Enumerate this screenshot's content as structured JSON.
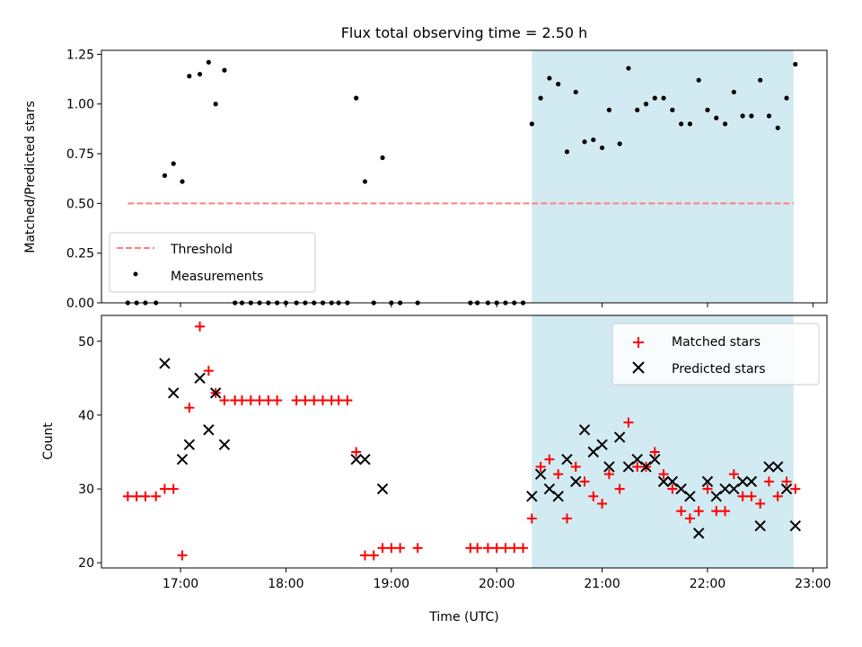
{
  "chart_data": [
    {
      "type": "scatter",
      "title": "Flux total observing time = 2.50 h",
      "xlabel": "",
      "ylabel": "Matched/Predicted stars",
      "xlim": [
        "16:15",
        "23:08"
      ],
      "ylim": [
        0,
        1.27
      ],
      "x_ticks": [
        "17:00",
        "18:00",
        "19:00",
        "20:00",
        "21:00",
        "22:00",
        "23:00"
      ],
      "y_ticks": [
        "0.00",
        "0.25",
        "0.50",
        "0.75",
        "1.00",
        "1.25"
      ],
      "shaded_interval": [
        "20:20",
        "22:49"
      ],
      "shade_color": "#add8e6",
      "legend_position": "lower-left",
      "series": [
        {
          "name": "Threshold",
          "style": "dashed-line",
          "color": "#ff7f7f",
          "points": [
            [
              "16:30",
              0.5
            ],
            [
              "22:49",
              0.5
            ]
          ]
        },
        {
          "name": "Measurements",
          "style": "dot",
          "color": "#000000",
          "points": [
            [
              "16:30",
              0
            ],
            [
              "16:35",
              0
            ],
            [
              "16:40",
              0
            ],
            [
              "16:46",
              0
            ],
            [
              "16:51",
              0.64
            ],
            [
              "16:56",
              0.7
            ],
            [
              "17:01",
              0.61
            ],
            [
              "17:05",
              1.14
            ],
            [
              "17:11",
              1.15
            ],
            [
              "17:16",
              1.21
            ],
            [
              "17:20",
              1.0
            ],
            [
              "17:25",
              1.17
            ],
            [
              "17:31",
              0
            ],
            [
              "17:35",
              0
            ],
            [
              "17:40",
              0
            ],
            [
              "17:45",
              0
            ],
            [
              "17:50",
              0
            ],
            [
              "17:55",
              0
            ],
            [
              "18:00",
              0
            ],
            [
              "18:06",
              0
            ],
            [
              "18:11",
              0
            ],
            [
              "18:16",
              0
            ],
            [
              "18:21",
              0
            ],
            [
              "18:26",
              0
            ],
            [
              "18:30",
              0
            ],
            [
              "18:35",
              0
            ],
            [
              "18:40",
              1.03
            ],
            [
              "18:45",
              0.61
            ],
            [
              "18:50",
              0
            ],
            [
              "18:55",
              0.73
            ],
            [
              "19:00",
              0
            ],
            [
              "19:05",
              0
            ],
            [
              "19:15",
              0
            ],
            [
              "19:45",
              0
            ],
            [
              "19:49",
              0
            ],
            [
              "19:55",
              0
            ],
            [
              "20:00",
              0
            ],
            [
              "20:05",
              0
            ],
            [
              "20:10",
              0
            ],
            [
              "20:15",
              0
            ],
            [
              "20:20",
              0.9
            ],
            [
              "20:25",
              1.03
            ],
            [
              "20:30",
              1.13
            ],
            [
              "20:35",
              1.1
            ],
            [
              "20:40",
              0.76
            ],
            [
              "20:45",
              1.06
            ],
            [
              "20:50",
              0.81
            ],
            [
              "20:55",
              0.82
            ],
            [
              "21:00",
              0.78
            ],
            [
              "21:04",
              0.97
            ],
            [
              "21:10",
              0.8
            ],
            [
              "21:15",
              1.18
            ],
            [
              "21:20",
              0.97
            ],
            [
              "21:25",
              1.0
            ],
            [
              "21:30",
              1.03
            ],
            [
              "21:35",
              1.03
            ],
            [
              "21:40",
              0.97
            ],
            [
              "21:45",
              0.9
            ],
            [
              "21:50",
              0.9
            ],
            [
              "21:55",
              1.12
            ],
            [
              "22:00",
              0.97
            ],
            [
              "22:05",
              0.93
            ],
            [
              "22:10",
              0.9
            ],
            [
              "22:15",
              1.06
            ],
            [
              "22:20",
              0.94
            ],
            [
              "22:25",
              0.94
            ],
            [
              "22:30",
              1.12
            ],
            [
              "22:35",
              0.94
            ],
            [
              "22:40",
              0.88
            ],
            [
              "22:45",
              1.03
            ],
            [
              "22:50",
              1.2
            ]
          ]
        }
      ]
    },
    {
      "type": "scatter",
      "title": "",
      "xlabel": "Time (UTC)",
      "ylabel": "Count",
      "xlim": [
        "16:15",
        "23:08"
      ],
      "ylim": [
        19.3,
        53.5
      ],
      "x_ticks": [
        "17:00",
        "18:00",
        "19:00",
        "20:00",
        "21:00",
        "22:00",
        "23:00"
      ],
      "y_ticks": [
        "20",
        "30",
        "40",
        "50"
      ],
      "shaded_interval": [
        "20:20",
        "22:49"
      ],
      "shade_color": "#add8e6",
      "legend_position": "upper-right",
      "series": [
        {
          "name": "Matched stars",
          "marker": "plus",
          "color": "#ff0000",
          "points": [
            [
              "16:30",
              29
            ],
            [
              "16:35",
              29
            ],
            [
              "16:40",
              29
            ],
            [
              "16:46",
              29
            ],
            [
              "16:51",
              30
            ],
            [
              "16:56",
              30
            ],
            [
              "17:01",
              21
            ],
            [
              "17:05",
              41
            ],
            [
              "17:11",
              52
            ],
            [
              "17:16",
              46
            ],
            [
              "17:20",
              43
            ],
            [
              "17:25",
              42
            ],
            [
              "17:31",
              42
            ],
            [
              "17:35",
              42
            ],
            [
              "17:40",
              42
            ],
            [
              "17:45",
              42
            ],
            [
              "17:50",
              42
            ],
            [
              "17:55",
              42
            ],
            [
              "18:06",
              42
            ],
            [
              "18:11",
              42
            ],
            [
              "18:16",
              42
            ],
            [
              "18:21",
              42
            ],
            [
              "18:26",
              42
            ],
            [
              "18:30",
              42
            ],
            [
              "18:35",
              42
            ],
            [
              "18:40",
              35
            ],
            [
              "18:45",
              21
            ],
            [
              "18:50",
              21
            ],
            [
              "18:55",
              22
            ],
            [
              "19:00",
              22
            ],
            [
              "19:05",
              22
            ],
            [
              "19:15",
              22
            ],
            [
              "19:45",
              22
            ],
            [
              "19:49",
              22
            ],
            [
              "19:55",
              22
            ],
            [
              "20:00",
              22
            ],
            [
              "20:05",
              22
            ],
            [
              "20:10",
              22
            ],
            [
              "20:15",
              22
            ],
            [
              "20:20",
              26
            ],
            [
              "20:25",
              33
            ],
            [
              "20:30",
              34
            ],
            [
              "20:35",
              32
            ],
            [
              "20:40",
              26
            ],
            [
              "20:45",
              33
            ],
            [
              "20:50",
              31
            ],
            [
              "20:55",
              29
            ],
            [
              "21:00",
              28
            ],
            [
              "21:04",
              32
            ],
            [
              "21:10",
              30
            ],
            [
              "21:15",
              39
            ],
            [
              "21:20",
              33
            ],
            [
              "21:25",
              33
            ],
            [
              "21:30",
              35
            ],
            [
              "21:35",
              32
            ],
            [
              "21:40",
              30
            ],
            [
              "21:45",
              27
            ],
            [
              "21:50",
              26
            ],
            [
              "21:55",
              27
            ],
            [
              "22:00",
              30
            ],
            [
              "22:05",
              27
            ],
            [
              "22:10",
              27
            ],
            [
              "22:15",
              32
            ],
            [
              "22:20",
              29
            ],
            [
              "22:25",
              29
            ],
            [
              "22:30",
              28
            ],
            [
              "22:35",
              31
            ],
            [
              "22:40",
              29
            ],
            [
              "22:45",
              31
            ],
            [
              "22:50",
              30
            ]
          ]
        },
        {
          "name": "Predicted stars",
          "marker": "x",
          "color": "#000000",
          "points": [
            [
              "16:51",
              47
            ],
            [
              "16:56",
              43
            ],
            [
              "17:01",
              34
            ],
            [
              "17:05",
              36
            ],
            [
              "17:11",
              45
            ],
            [
              "17:16",
              38
            ],
            [
              "17:20",
              43
            ],
            [
              "17:25",
              36
            ],
            [
              "18:40",
              34
            ],
            [
              "18:45",
              34
            ],
            [
              "18:55",
              30
            ],
            [
              "20:20",
              29
            ],
            [
              "20:25",
              32
            ],
            [
              "20:30",
              30
            ],
            [
              "20:35",
              29
            ],
            [
              "20:40",
              34
            ],
            [
              "20:45",
              31
            ],
            [
              "20:50",
              38
            ],
            [
              "20:55",
              35
            ],
            [
              "21:00",
              36
            ],
            [
              "21:04",
              33
            ],
            [
              "21:10",
              37
            ],
            [
              "21:15",
              33
            ],
            [
              "21:20",
              34
            ],
            [
              "21:25",
              33
            ],
            [
              "21:30",
              34
            ],
            [
              "21:35",
              31
            ],
            [
              "21:40",
              31
            ],
            [
              "21:45",
              30
            ],
            [
              "21:50",
              29
            ],
            [
              "21:55",
              24
            ],
            [
              "22:00",
              31
            ],
            [
              "22:05",
              29
            ],
            [
              "22:10",
              30
            ],
            [
              "22:15",
              30
            ],
            [
              "22:20",
              31
            ],
            [
              "22:25",
              31
            ],
            [
              "22:30",
              25
            ],
            [
              "22:35",
              33
            ],
            [
              "22:40",
              33
            ],
            [
              "22:45",
              30
            ],
            [
              "22:50",
              25
            ]
          ]
        }
      ]
    }
  ]
}
